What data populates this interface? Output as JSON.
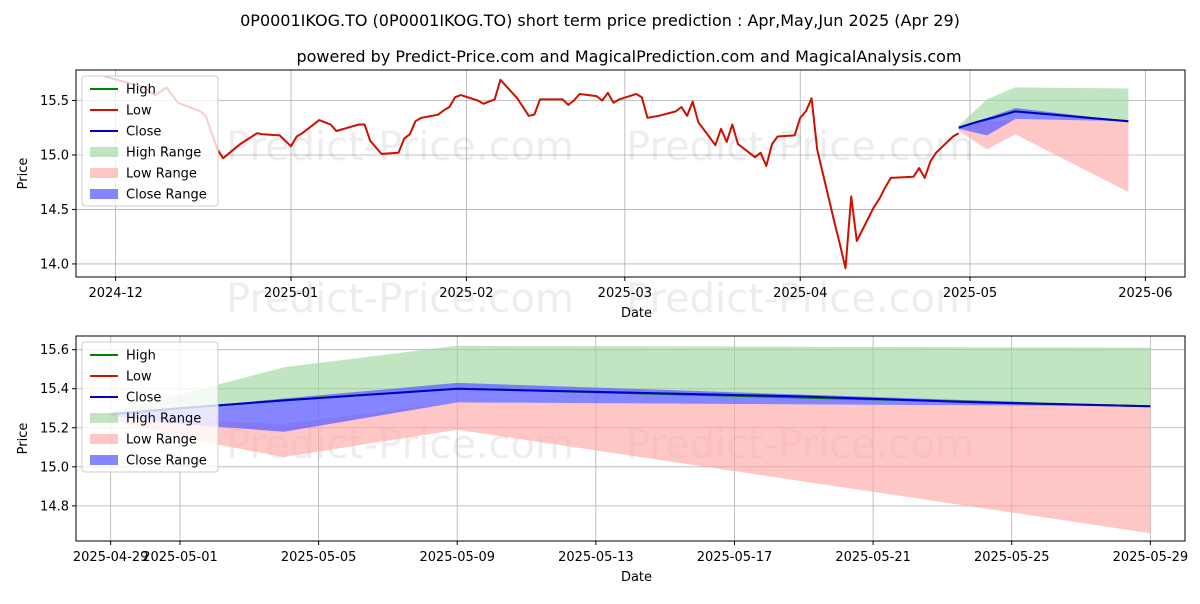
{
  "header": {
    "title": "0P0001IKOG.TO (0P0001IKOG.TO) short term price prediction : Apr,May,Jun 2025 (Apr 29)",
    "subtitle": "powered by Predict-Price.com and MagicalPrediction.com and MagicalAnalysis.com"
  },
  "watermark": "Predict-Price.com",
  "colors": {
    "high": "#008000",
    "low": "#cc1100",
    "close": "#0000cc",
    "high_range": "#9fd59f",
    "low_range": "#ffa8a8",
    "close_range": "#6666ff",
    "grid": "#b0b0b0"
  },
  "legend": {
    "position": "top-left",
    "entries": [
      {
        "key": "high",
        "label": "High",
        "kind": "line"
      },
      {
        "key": "low",
        "label": "Low",
        "kind": "line"
      },
      {
        "key": "close",
        "label": "Close",
        "kind": "line"
      },
      {
        "key": "high_range",
        "label": "High Range",
        "kind": "patch"
      },
      {
        "key": "low_range",
        "label": "Low Range",
        "kind": "patch"
      },
      {
        "key": "close_range",
        "label": "Close Range",
        "kind": "patch"
      }
    ]
  },
  "chart_data": [
    {
      "type": "line",
      "xlabel": "Date",
      "ylabel": "Price",
      "xlim": [
        "2024-11-24",
        "2025-06-08"
      ],
      "ylim": [
        13.88,
        15.78
      ],
      "grid": true,
      "xticks": [
        "2024-12-01",
        "2025-01-01",
        "2025-02-01",
        "2025-03-01",
        "2025-04-01",
        "2025-05-01",
        "2025-06-01"
      ],
      "xtick_labels": [
        "2024-12",
        "2025-01",
        "2025-02",
        "2025-03",
        "2025-04",
        "2025-05",
        "2025-06"
      ],
      "yticks": [
        14.0,
        14.5,
        15.0,
        15.5
      ],
      "ytick_labels": [
        "14.0",
        "14.5",
        "15.0",
        "15.5"
      ],
      "series": [
        {
          "key": "low",
          "x": [
            "2024-11-29",
            "2024-12-02",
            "2024-12-04",
            "2024-12-06",
            "2024-12-08",
            "2024-12-10",
            "2024-12-12",
            "2024-12-16",
            "2024-12-17",
            "2024-12-18",
            "2024-12-19",
            "2024-12-20",
            "2024-12-23",
            "2024-12-26",
            "2024-12-27",
            "2024-12-30",
            "2025-01-01",
            "2025-01-02",
            "2025-01-03",
            "2025-01-06",
            "2025-01-07",
            "2025-01-08",
            "2025-01-09",
            "2025-01-13",
            "2025-01-14",
            "2025-01-15",
            "2025-01-16",
            "2025-01-17",
            "2025-01-20",
            "2025-01-21",
            "2025-01-22",
            "2025-01-23",
            "2025-01-24",
            "2025-01-27",
            "2025-01-28",
            "2025-01-29",
            "2025-01-30",
            "2025-01-31",
            "2025-02-03",
            "2025-02-04",
            "2025-02-05",
            "2025-02-06",
            "2025-02-07",
            "2025-02-10",
            "2025-02-11",
            "2025-02-12",
            "2025-02-13",
            "2025-02-14",
            "2025-02-18",
            "2025-02-19",
            "2025-02-20",
            "2025-02-21",
            "2025-02-24",
            "2025-02-25",
            "2025-02-26",
            "2025-02-27",
            "2025-02-28",
            "2025-03-03",
            "2025-03-04",
            "2025-03-05",
            "2025-03-06",
            "2025-03-07",
            "2025-03-10",
            "2025-03-11",
            "2025-03-12",
            "2025-03-13",
            "2025-03-14",
            "2025-03-17",
            "2025-03-18",
            "2025-03-19",
            "2025-03-20",
            "2025-03-21",
            "2025-03-24",
            "2025-03-25",
            "2025-03-26",
            "2025-03-27",
            "2025-03-28",
            "2025-03-31",
            "2025-04-01",
            "2025-04-02",
            "2025-04-03",
            "2025-04-04",
            "2025-04-07",
            "2025-04-08",
            "2025-04-09",
            "2025-04-10",
            "2025-04-11",
            "2025-04-14",
            "2025-04-15",
            "2025-04-16",
            "2025-04-17",
            "2025-04-21",
            "2025-04-22",
            "2025-04-23",
            "2025-04-24",
            "2025-04-25",
            "2025-04-28",
            "2025-04-29"
          ],
          "y": [
            15.72,
            15.68,
            15.65,
            15.62,
            15.55,
            15.62,
            15.48,
            15.4,
            15.35,
            15.2,
            15.05,
            14.97,
            15.1,
            15.2,
            15.19,
            15.18,
            15.08,
            15.17,
            15.2,
            15.32,
            15.3,
            15.28,
            15.22,
            15.28,
            15.28,
            15.13,
            15.07,
            15.01,
            15.02,
            15.15,
            15.19,
            15.31,
            15.34,
            15.37,
            15.41,
            15.44,
            15.53,
            15.55,
            15.5,
            15.47,
            15.49,
            15.51,
            15.69,
            15.52,
            15.44,
            15.36,
            15.37,
            15.51,
            15.51,
            15.46,
            15.5,
            15.56,
            15.54,
            15.5,
            15.57,
            15.48,
            15.51,
            15.56,
            15.53,
            15.34,
            15.35,
            15.36,
            15.4,
            15.44,
            15.36,
            15.49,
            15.3,
            15.09,
            15.24,
            15.12,
            15.28,
            15.1,
            14.98,
            15.02,
            14.9,
            15.1,
            15.17,
            15.18,
            15.34,
            15.4,
            15.52,
            15.05,
            14.39,
            14.18,
            13.96,
            14.62,
            14.21,
            14.52,
            14.6,
            14.7,
            14.79,
            14.8,
            14.88,
            14.79,
            14.94,
            15.02,
            15.17,
            15.2
          ]
        },
        {
          "key": "high",
          "x": [
            "2025-04-29",
            "2025-05-02",
            "2025-05-09",
            "2025-05-29"
          ],
          "y": [
            15.25,
            15.3,
            15.4,
            15.31
          ]
        },
        {
          "key": "close",
          "x": [
            "2025-04-29",
            "2025-05-02",
            "2025-05-05",
            "2025-05-09",
            "2025-05-16",
            "2025-05-22",
            "2025-05-29"
          ],
          "y": [
            15.25,
            15.3,
            15.34,
            15.4,
            15.37,
            15.34,
            15.31
          ]
        },
        {
          "key": "high_range",
          "x": [
            "2025-04-29",
            "2025-05-04",
            "2025-05-09",
            "2025-05-29"
          ],
          "upper": [
            15.27,
            15.51,
            15.62,
            15.61
          ],
          "lower": [
            15.25,
            15.3,
            15.4,
            15.31
          ]
        },
        {
          "key": "low_range",
          "x": [
            "2025-04-29",
            "2025-05-04",
            "2025-05-09",
            "2025-05-29"
          ],
          "upper": [
            15.25,
            15.3,
            15.33,
            15.31
          ],
          "lower": [
            15.22,
            15.05,
            15.19,
            14.66
          ]
        },
        {
          "key": "close_range",
          "x": [
            "2025-04-29",
            "2025-05-04",
            "2025-05-09",
            "2025-05-29"
          ],
          "upper": [
            15.26,
            15.34,
            15.43,
            15.31
          ],
          "lower": [
            15.24,
            15.18,
            15.33,
            15.31
          ]
        }
      ]
    },
    {
      "type": "line",
      "xlabel": "Date",
      "ylabel": "Price",
      "xlim": [
        "2025-04-28",
        "2025-05-30"
      ],
      "ylim": [
        14.62,
        15.67
      ],
      "grid": true,
      "xticks": [
        "2025-04-29",
        "2025-05-01",
        "2025-05-05",
        "2025-05-09",
        "2025-05-13",
        "2025-05-17",
        "2025-05-21",
        "2025-05-25",
        "2025-05-29"
      ],
      "xtick_labels": [
        "2025-04-29",
        "2025-05-01",
        "2025-05-05",
        "2025-05-09",
        "2025-05-13",
        "2025-05-17",
        "2025-05-21",
        "2025-05-25",
        "2025-05-29"
      ],
      "yticks": [
        14.8,
        15.0,
        15.2,
        15.4,
        15.6
      ],
      "ytick_labels": [
        "14.8",
        "15.0",
        "15.2",
        "15.4",
        "15.6"
      ],
      "series": [
        {
          "key": "high",
          "x": [
            "2025-04-29",
            "2025-05-01",
            "2025-05-04",
            "2025-05-09",
            "2025-05-29"
          ],
          "y": [
            15.27,
            15.3,
            15.34,
            15.4,
            15.31
          ]
        },
        {
          "key": "close",
          "x": [
            "2025-04-29",
            "2025-05-01",
            "2025-05-04",
            "2025-05-09",
            "2025-05-14",
            "2025-05-19",
            "2025-05-24",
            "2025-05-29"
          ],
          "y": [
            15.27,
            15.3,
            15.34,
            15.4,
            15.38,
            15.36,
            15.33,
            15.31
          ]
        },
        {
          "key": "high_range",
          "x": [
            "2025-04-29",
            "2025-05-01",
            "2025-05-04",
            "2025-05-09",
            "2025-05-29"
          ],
          "upper": [
            15.28,
            15.37,
            15.51,
            15.62,
            15.61
          ],
          "lower": [
            15.27,
            15.3,
            15.34,
            15.4,
            15.31
          ]
        },
        {
          "key": "low_range",
          "x": [
            "2025-04-29",
            "2025-05-01",
            "2025-05-04",
            "2025-05-09",
            "2025-05-29"
          ],
          "upper": [
            15.25,
            15.24,
            15.22,
            15.33,
            15.31
          ],
          "lower": [
            15.24,
            15.15,
            15.05,
            15.19,
            14.66
          ]
        },
        {
          "key": "close_range",
          "x": [
            "2025-04-29",
            "2025-05-01",
            "2025-05-04",
            "2025-05-09",
            "2025-05-29"
          ],
          "upper": [
            15.27,
            15.3,
            15.35,
            15.43,
            15.31
          ],
          "lower": [
            15.26,
            15.22,
            15.18,
            15.33,
            15.31
          ]
        }
      ]
    }
  ]
}
